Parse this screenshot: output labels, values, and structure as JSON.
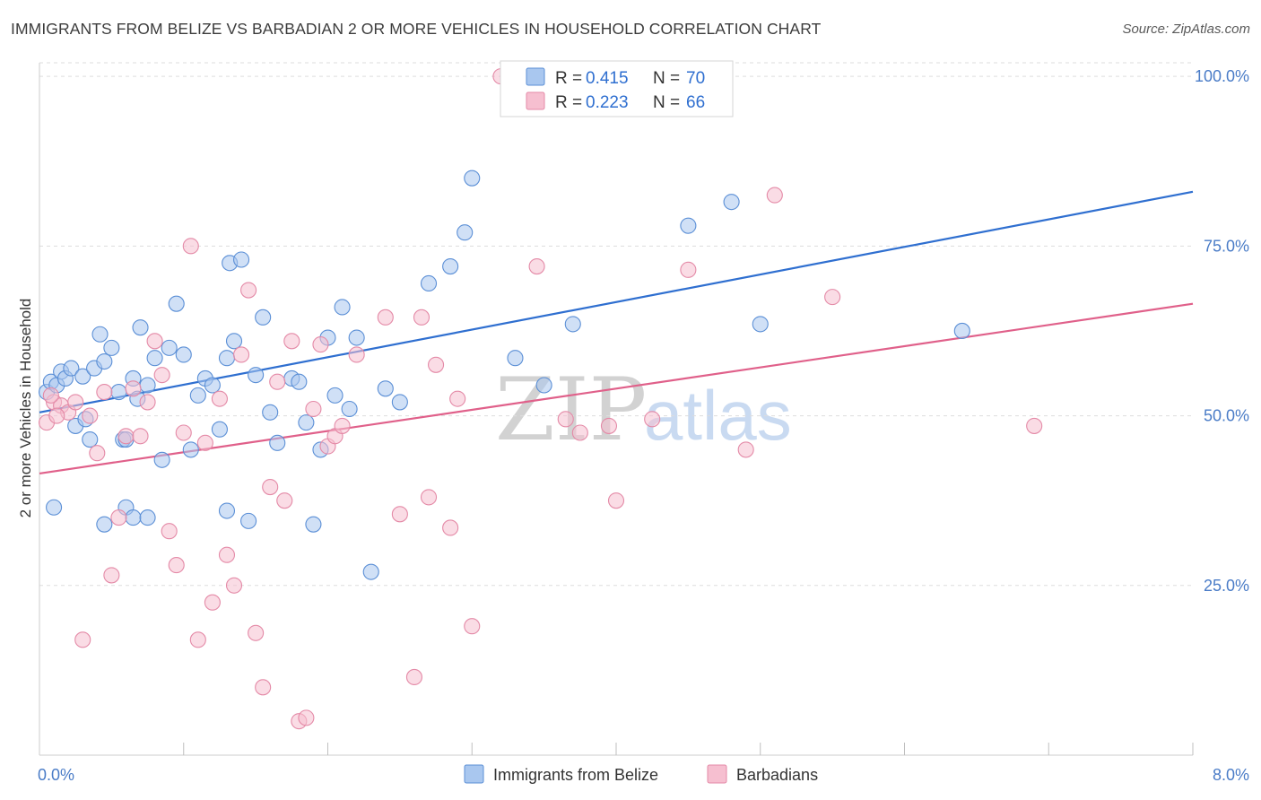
{
  "header": {
    "title": "IMMIGRANTS FROM BELIZE VS BARBADIAN 2 OR MORE VEHICLES IN HOUSEHOLD CORRELATION CHART",
    "source": "Source: ZipAtlas.com"
  },
  "watermark": {
    "zip": "ZIP",
    "atlas": "atlas"
  },
  "colors": {
    "blue_fill": "#a9c7ef",
    "blue_stroke": "#5b8fd6",
    "blue_line": "#2f6fd0",
    "pink_fill": "#f6bfd0",
    "pink_stroke": "#e48aa7",
    "pink_line": "#e0608a",
    "tick_text": "#4a7cc7",
    "grid": "#dddddd"
  },
  "chart_data": {
    "type": "scatter",
    "title": "IMMIGRANTS FROM BELIZE VS BARBADIAN 2 OR MORE VEHICLES IN HOUSEHOLD CORRELATION CHART",
    "xlabel": "",
    "ylabel": "2 or more Vehicles in Household",
    "xlim": [
      0,
      8
    ],
    "ylim": [
      0,
      102
    ],
    "x_tick_labels": [
      "0.0%",
      "8.0%"
    ],
    "y_ticks": [
      25,
      50,
      75,
      100
    ],
    "y_tick_labels": [
      "25.0%",
      "50.0%",
      "75.0%",
      "100.0%"
    ],
    "legend": [
      {
        "r_label": "R =",
        "r_value": "0.415",
        "n_label": "N =",
        "n_value": "70"
      },
      {
        "r_label": "R =",
        "r_value": "0.223",
        "n_label": "N =",
        "n_value": "66"
      }
    ],
    "series": [
      {
        "name": "Immigrants from Belize",
        "trend": {
          "x": [
            0,
            8
          ],
          "y": [
            50.5,
            83
          ]
        },
        "points": [
          [
            0.05,
            53.5
          ],
          [
            0.08,
            55.0
          ],
          [
            0.1,
            36.5
          ],
          [
            0.12,
            54.5
          ],
          [
            0.15,
            56.5
          ],
          [
            0.18,
            55.5
          ],
          [
            0.22,
            57.0
          ],
          [
            0.25,
            48.5
          ],
          [
            0.3,
            55.8
          ],
          [
            0.32,
            49.5
          ],
          [
            0.35,
            46.5
          ],
          [
            0.38,
            57.0
          ],
          [
            0.42,
            62.0
          ],
          [
            0.45,
            58.0
          ],
          [
            0.5,
            60.0
          ],
          [
            0.55,
            53.5
          ],
          [
            0.58,
            46.5
          ],
          [
            0.6,
            46.5
          ],
          [
            0.65,
            55.5
          ],
          [
            0.68,
            52.5
          ],
          [
            0.7,
            63.0
          ],
          [
            0.75,
            54.5
          ],
          [
            0.8,
            58.5
          ],
          [
            0.85,
            43.5
          ],
          [
            0.9,
            60.0
          ],
          [
            0.95,
            66.5
          ],
          [
            1.0,
            59.0
          ],
          [
            1.05,
            45.0
          ],
          [
            1.1,
            53.0
          ],
          [
            1.15,
            55.5
          ],
          [
            1.2,
            54.5
          ],
          [
            1.25,
            48.0
          ],
          [
            1.3,
            58.5
          ],
          [
            1.32,
            72.5
          ],
          [
            1.35,
            61.0
          ],
          [
            1.4,
            73.0
          ],
          [
            1.45,
            34.5
          ],
          [
            1.5,
            56.0
          ],
          [
            1.55,
            64.5
          ],
          [
            1.6,
            50.5
          ],
          [
            1.65,
            46.0
          ],
          [
            1.75,
            55.5
          ],
          [
            1.8,
            55.0
          ],
          [
            1.85,
            49.0
          ],
          [
            1.9,
            34.0
          ],
          [
            1.95,
            45.0
          ],
          [
            2.0,
            61.5
          ],
          [
            2.05,
            53.0
          ],
          [
            2.1,
            66.0
          ],
          [
            2.15,
            51.0
          ],
          [
            2.2,
            61.5
          ],
          [
            2.3,
            27.0
          ],
          [
            2.4,
            54.0
          ],
          [
            2.5,
            52.0
          ],
          [
            2.7,
            69.5
          ],
          [
            2.85,
            72.0
          ],
          [
            2.95,
            77.0
          ],
          [
            3.0,
            85.0
          ],
          [
            3.3,
            58.5
          ],
          [
            3.5,
            54.5
          ],
          [
            3.7,
            63.5
          ],
          [
            0.6,
            36.5
          ],
          [
            0.65,
            35.0
          ],
          [
            0.45,
            34.0
          ],
          [
            0.75,
            35.0
          ],
          [
            1.3,
            36.0
          ],
          [
            4.5,
            78.0
          ],
          [
            4.8,
            81.5
          ],
          [
            5.0,
            63.5
          ],
          [
            6.4,
            62.5
          ]
        ]
      },
      {
        "name": "Barbadians",
        "trend": {
          "x": [
            0,
            8
          ],
          "y": [
            41.5,
            66.5
          ]
        },
        "points": [
          [
            0.05,
            49.0
          ],
          [
            0.1,
            52.0
          ],
          [
            0.15,
            51.5
          ],
          [
            0.2,
            50.5
          ],
          [
            0.25,
            52.0
          ],
          [
            0.3,
            17.0
          ],
          [
            0.35,
            50.0
          ],
          [
            0.4,
            44.5
          ],
          [
            0.45,
            53.5
          ],
          [
            0.5,
            26.5
          ],
          [
            0.55,
            35.0
          ],
          [
            0.6,
            47.0
          ],
          [
            0.65,
            54.0
          ],
          [
            0.7,
            47.0
          ],
          [
            0.75,
            52.0
          ],
          [
            0.8,
            61.0
          ],
          [
            0.85,
            56.0
          ],
          [
            0.9,
            33.0
          ],
          [
            0.95,
            28.0
          ],
          [
            1.0,
            47.5
          ],
          [
            1.05,
            75.0
          ],
          [
            1.1,
            17.0
          ],
          [
            1.15,
            46.0
          ],
          [
            1.2,
            22.5
          ],
          [
            1.25,
            52.5
          ],
          [
            1.3,
            29.5
          ],
          [
            1.35,
            25.0
          ],
          [
            1.4,
            59.0
          ],
          [
            1.45,
            68.5
          ],
          [
            1.5,
            18.0
          ],
          [
            1.55,
            10.0
          ],
          [
            1.6,
            39.5
          ],
          [
            1.65,
            55.0
          ],
          [
            1.7,
            37.5
          ],
          [
            1.75,
            61.0
          ],
          [
            1.8,
            5.0
          ],
          [
            1.85,
            5.5
          ],
          [
            1.9,
            51.0
          ],
          [
            1.95,
            60.5
          ],
          [
            2.0,
            45.5
          ],
          [
            2.05,
            47.0
          ],
          [
            2.1,
            48.5
          ],
          [
            2.2,
            59.0
          ],
          [
            2.4,
            64.5
          ],
          [
            2.5,
            35.5
          ],
          [
            2.6,
            11.5
          ],
          [
            2.65,
            64.5
          ],
          [
            2.7,
            38.0
          ],
          [
            2.75,
            57.5
          ],
          [
            2.85,
            33.5
          ],
          [
            2.9,
            52.5
          ],
          [
            3.0,
            19.0
          ],
          [
            3.2,
            100.0
          ],
          [
            3.45,
            72.0
          ],
          [
            3.65,
            49.5
          ],
          [
            3.75,
            47.5
          ],
          [
            3.95,
            48.5
          ],
          [
            4.0,
            37.5
          ],
          [
            4.25,
            49.5
          ],
          [
            4.5,
            71.5
          ],
          [
            4.9,
            45.0
          ],
          [
            5.1,
            82.5
          ],
          [
            5.5,
            67.5
          ],
          [
            6.9,
            48.5
          ],
          [
            0.08,
            53.0
          ],
          [
            0.12,
            50.0
          ]
        ]
      }
    ]
  }
}
